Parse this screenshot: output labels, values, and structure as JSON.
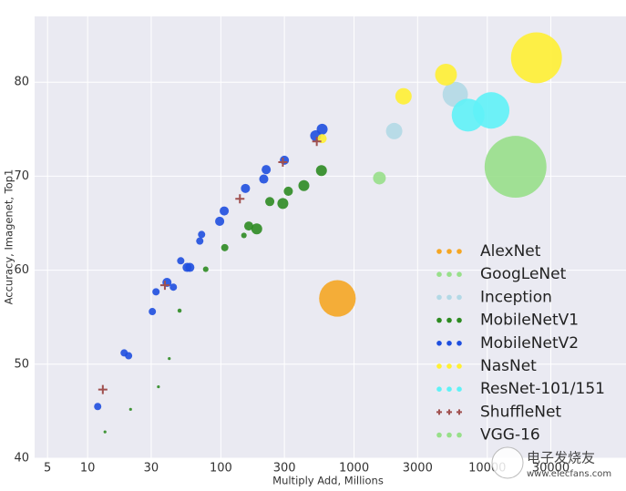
{
  "chart_data": {
    "type": "scatter",
    "x_label": "Multiply Add, Millions",
    "y_label": "Accuracy, Imagenet, Top1",
    "xscale": "log",
    "xlim": [
      4,
      110000
    ],
    "ylim": [
      40,
      87
    ],
    "xticks": [
      5,
      10,
      30,
      100,
      300,
      1000,
      3000,
      10000,
      30000
    ],
    "yticks": [
      40,
      50,
      60,
      70,
      80
    ],
    "grid": true,
    "legend": "lower right",
    "series": [
      {
        "name": "AlexNet",
        "color": "#f5a623",
        "marker": "circle",
        "x": [
          750
        ],
        "values": [
          57.0
        ],
        "sizes": [
          48
        ]
      },
      {
        "name": "GoogLeNet",
        "color": "#98df8a",
        "marker": "circle",
        "x": [
          1550
        ],
        "values": [
          69.8
        ],
        "sizes": [
          5.8
        ]
      },
      {
        "name": "Inception",
        "color": "#b3d9e6",
        "marker": "circle",
        "x": [
          2000,
          5750
        ],
        "values": [
          74.8,
          78.7
        ],
        "sizes": [
          9.6,
          23
        ]
      },
      {
        "name": "MobileNetV1",
        "color": "#2e8b22",
        "marker": "circle",
        "x": [
          13.5,
          21,
          34,
          41,
          49,
          77,
          107,
          149,
          162,
          186,
          233,
          292,
          321,
          420,
          569
        ],
        "values": [
          42.8,
          45.2,
          47.6,
          50.6,
          55.7,
          60.1,
          62.4,
          63.7,
          64.7,
          64.4,
          67.3,
          67.1,
          68.4,
          69.0,
          70.6
        ],
        "sizes": [
          0.3,
          0.3,
          0.3,
          0.3,
          0.6,
          1.1,
          1.9,
          1.1,
          3.0,
          4.3,
          3.0,
          4.3,
          3.0,
          4.3,
          4.3
        ]
      },
      {
        "name": "MobileNetV2",
        "color": "#1f4fdf",
        "marker": "circle",
        "x": [
          11.9,
          18.8,
          20.3,
          30.6,
          32.6,
          39.4,
          44,
          50,
          55.8,
          58.5,
          69.5,
          71.7,
          98,
          106,
          153,
          210,
          219,
          300,
          515,
          576
        ],
        "values": [
          45.5,
          51.2,
          50.9,
          55.6,
          57.7,
          58.7,
          58.2,
          61.0,
          60.3,
          60.3,
          63.1,
          63.8,
          65.2,
          66.3,
          68.7,
          69.7,
          70.7,
          71.7,
          74.3,
          75.0
        ],
        "sizes": [
          1.9,
          1.9,
          1.9,
          1.9,
          1.9,
          3.0,
          1.9,
          1.9,
          3.0,
          3.0,
          1.9,
          1.9,
          3.0,
          3.0,
          3.0,
          3.0,
          3.0,
          3.0,
          4.3,
          4.3
        ]
      },
      {
        "name": "NasNet",
        "color": "#fff033",
        "marker": "circle",
        "x": [
          576,
          2350,
          4900,
          23400
        ],
        "values": [
          74.0,
          78.5,
          80.8,
          82.6
        ],
        "sizes": [
          3.0,
          9.6,
          17,
          93
        ]
      },
      {
        "name": "ResNet-101/151",
        "color": "#5ff2f7",
        "marker": "circle",
        "x": [
          7180,
          10700
        ],
        "values": [
          76.5,
          77.0
        ],
        "sizes": [
          38.5,
          47.6
        ]
      },
      {
        "name": "ShuffleNet",
        "color": "#a0504f",
        "marker": "plus",
        "x": [
          13,
          38,
          139,
          292,
          525
        ],
        "values": [
          47.3,
          58.4,
          67.6,
          71.5,
          73.7
        ]
      },
      {
        "name": "VGG-16",
        "color": "#98df8a",
        "marker": "circle",
        "x": [
          16300
        ],
        "values": [
          71.0
        ],
        "sizes": [
          137
        ]
      }
    ],
    "watermark": {
      "brand": "电子发烧友",
      "url": "www.elecfans.com"
    }
  }
}
